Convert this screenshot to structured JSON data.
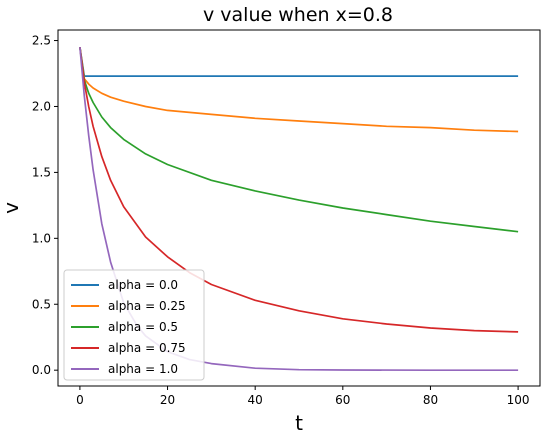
{
  "chart_data": {
    "type": "line",
    "title": "v value when x=0.8",
    "xlabel": "t",
    "ylabel": "v",
    "xlim": [
      -5,
      105
    ],
    "ylim": [
      -0.12,
      2.58
    ],
    "xticks": [
      "0",
      "20",
      "40",
      "60",
      "80",
      "100"
    ],
    "yticks": [
      "0.0",
      "0.5",
      "1.0",
      "1.5",
      "2.0",
      "2.5"
    ],
    "grid": false,
    "legend_position": "lower-left",
    "series": [
      {
        "name": "alpha = 0.0",
        "color": "#1f77b4",
        "x": [
          0,
          1,
          2,
          5,
          10,
          20,
          40,
          60,
          80,
          100
        ],
        "y": [
          2.45,
          2.23,
          2.23,
          2.23,
          2.23,
          2.23,
          2.23,
          2.23,
          2.23,
          2.23
        ]
      },
      {
        "name": "alpha = 0.25",
        "color": "#ff7f0e",
        "x": [
          0,
          1,
          2,
          3,
          5,
          7,
          10,
          15,
          20,
          30,
          40,
          50,
          60,
          70,
          80,
          90,
          100
        ],
        "y": [
          2.45,
          2.21,
          2.17,
          2.14,
          2.1,
          2.07,
          2.04,
          2.0,
          1.97,
          1.94,
          1.91,
          1.89,
          1.87,
          1.85,
          1.84,
          1.82,
          1.81
        ]
      },
      {
        "name": "alpha = 0.5",
        "color": "#2ca02c",
        "x": [
          0,
          1,
          2,
          3,
          5,
          7,
          10,
          15,
          20,
          30,
          40,
          50,
          60,
          70,
          80,
          90,
          100
        ],
        "y": [
          2.45,
          2.2,
          2.1,
          2.03,
          1.92,
          1.84,
          1.75,
          1.64,
          1.56,
          1.44,
          1.36,
          1.29,
          1.23,
          1.18,
          1.13,
          1.09,
          1.05
        ]
      },
      {
        "name": "alpha = 0.75",
        "color": "#d62728",
        "x": [
          0,
          1,
          2,
          3,
          5,
          7,
          10,
          15,
          20,
          25,
          30,
          40,
          50,
          60,
          70,
          80,
          90,
          100
        ],
        "y": [
          2.45,
          2.18,
          2.0,
          1.85,
          1.62,
          1.44,
          1.24,
          1.01,
          0.86,
          0.74,
          0.65,
          0.53,
          0.45,
          0.39,
          0.35,
          0.32,
          0.3,
          0.29
        ]
      },
      {
        "name": "alpha = 1.0",
        "color": "#9467bd",
        "x": [
          0,
          1,
          2,
          3,
          5,
          7,
          10,
          13,
          15,
          20,
          25,
          30,
          40,
          50,
          60,
          80,
          100
        ],
        "y": [
          2.45,
          2.08,
          1.78,
          1.52,
          1.11,
          0.82,
          0.51,
          0.34,
          0.26,
          0.14,
          0.08,
          0.05,
          0.015,
          0.004,
          0.001,
          0.0,
          0.0
        ]
      }
    ]
  }
}
